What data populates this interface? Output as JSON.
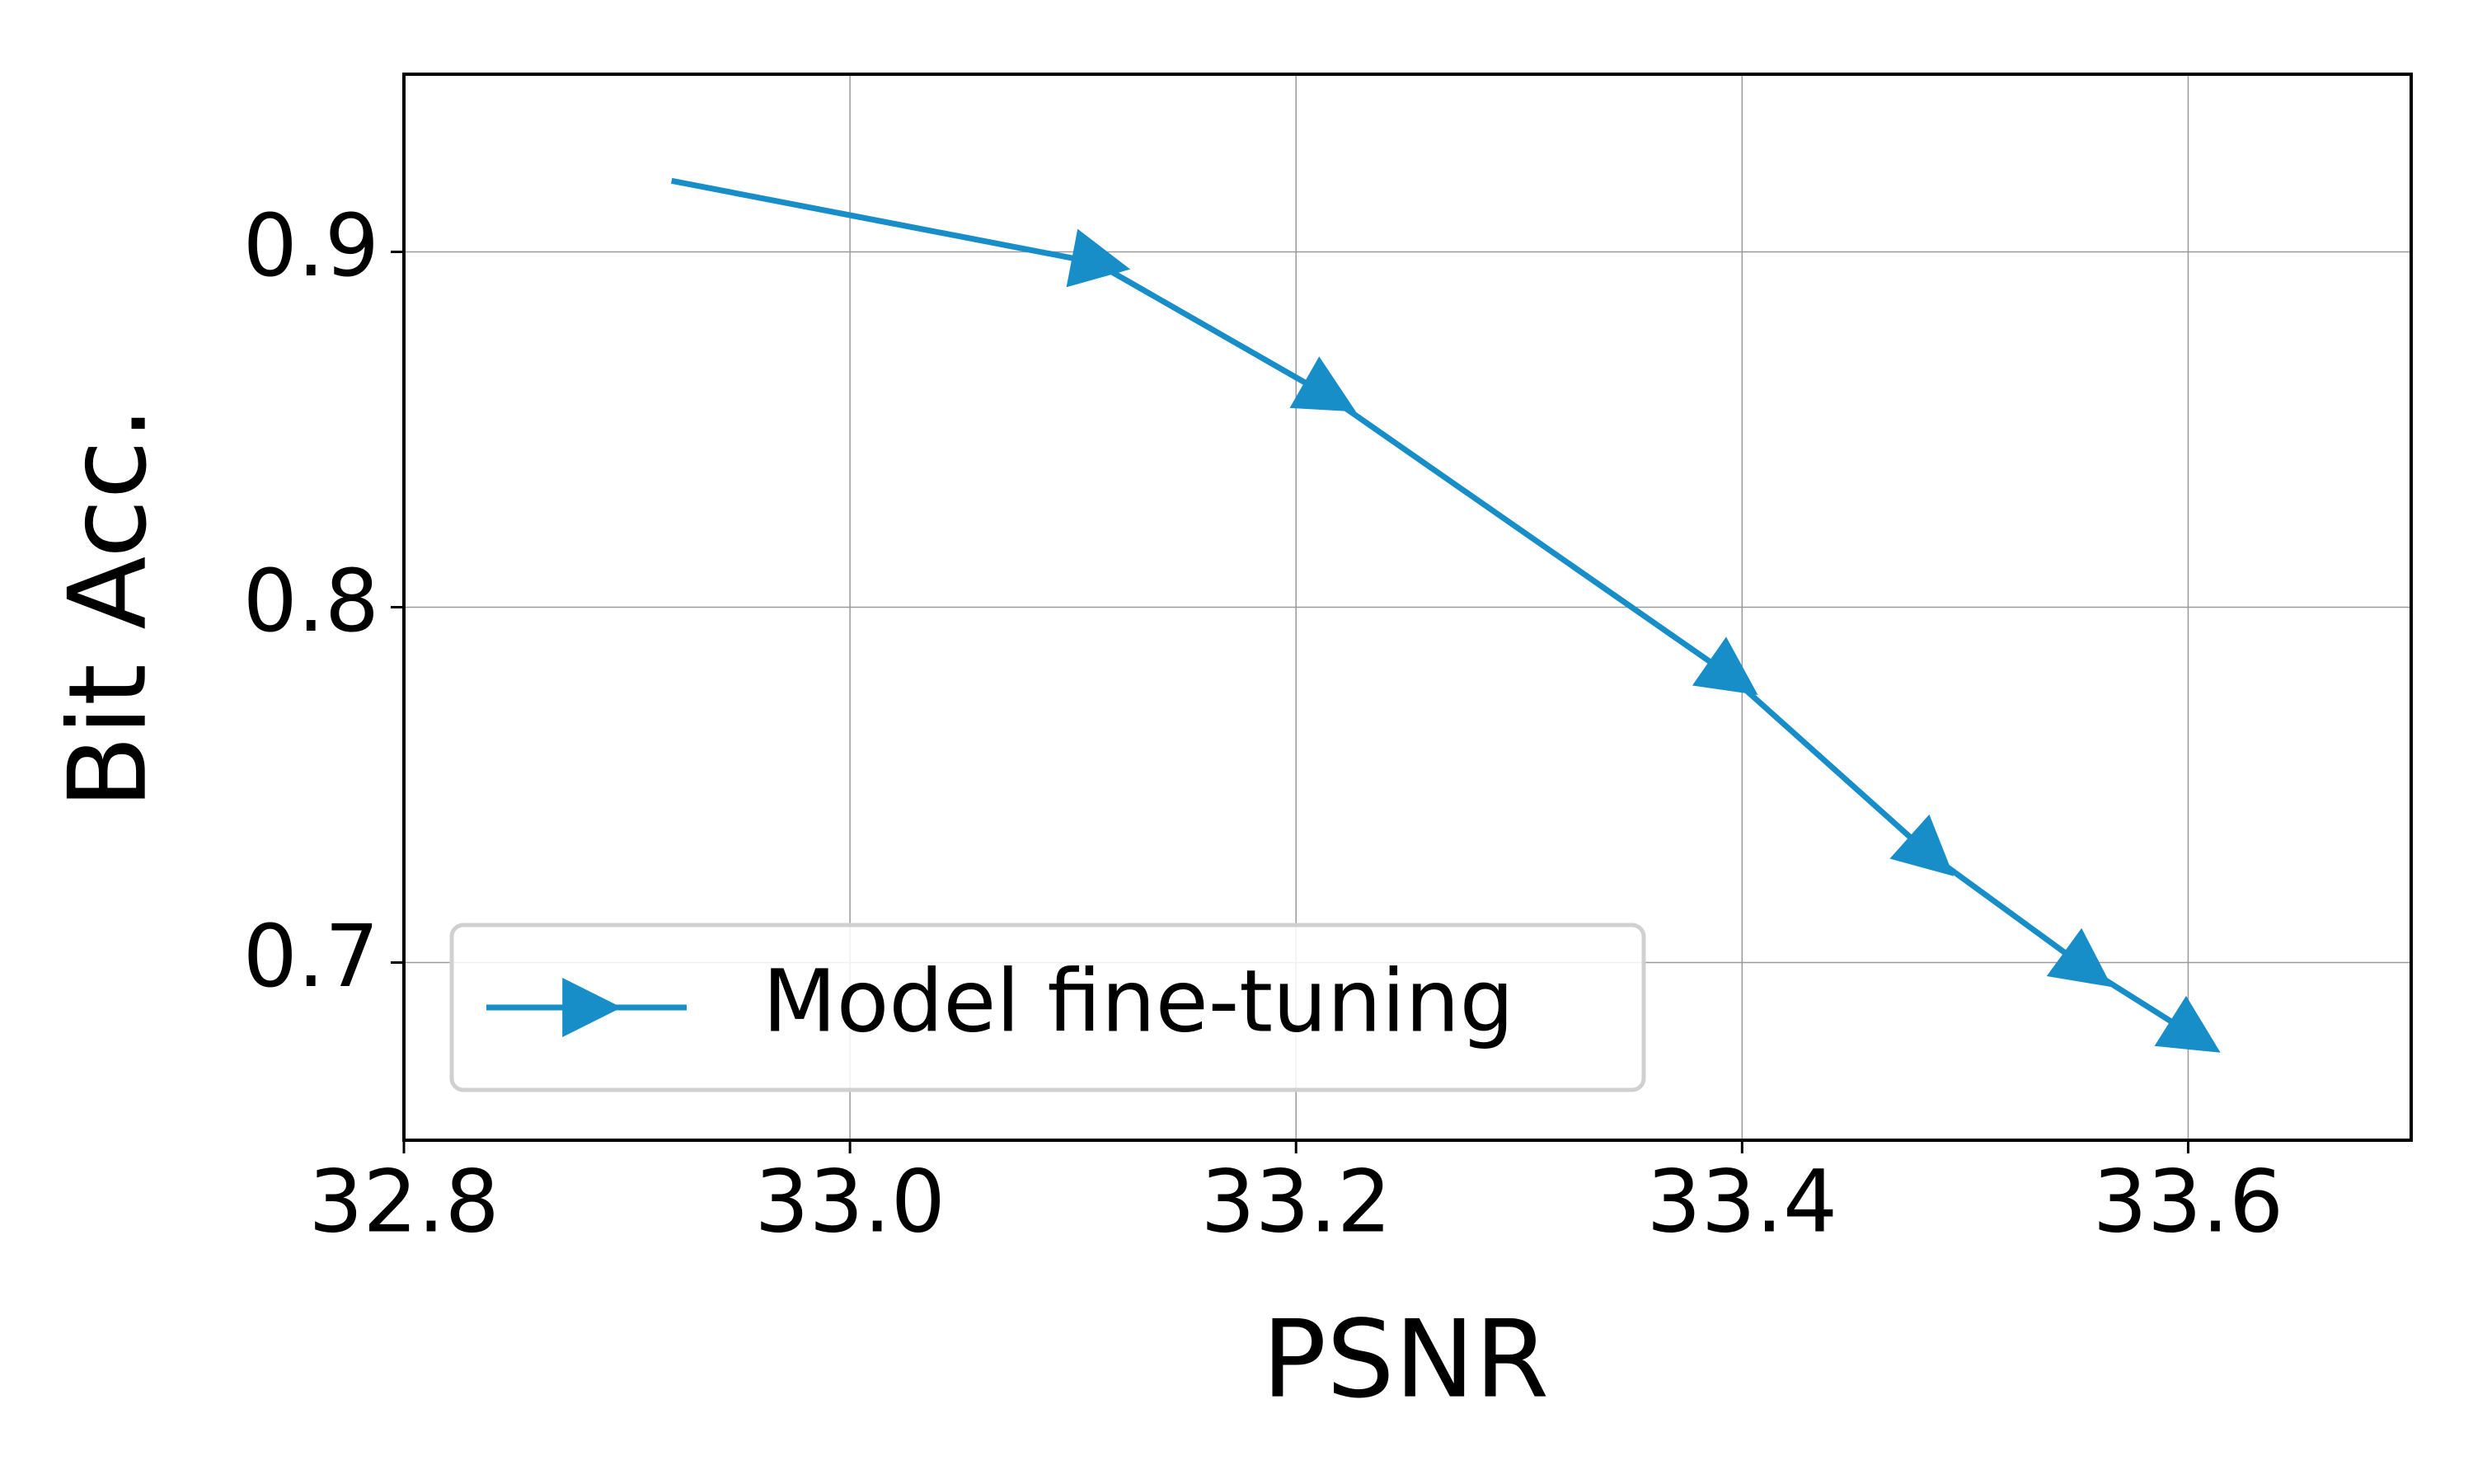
{
  "chart_data": {
    "type": "line",
    "x_label": "PSNR",
    "y_label": "Bit Acc.",
    "x": [
      32.92,
      33.11,
      33.213,
      33.394,
      33.483,
      33.553,
      33.601
    ],
    "series": [
      {
        "name": "Model fine-tuning",
        "color": "#178ec8",
        "values": [
          0.92,
          0.897,
          0.86,
          0.781,
          0.731,
          0.699,
          0.68
        ]
      }
    ],
    "xlim": [
      32.8,
      33.7
    ],
    "ylim": [
      0.65,
      0.95
    ],
    "xticks": [
      32.8,
      {
        "value": 33,
        "label": "33.0"
      },
      33.2,
      33.4,
      33.6
    ],
    "yticks": [
      0.7,
      0.8,
      0.9
    ],
    "grid": true,
    "legend": "lower left"
  }
}
